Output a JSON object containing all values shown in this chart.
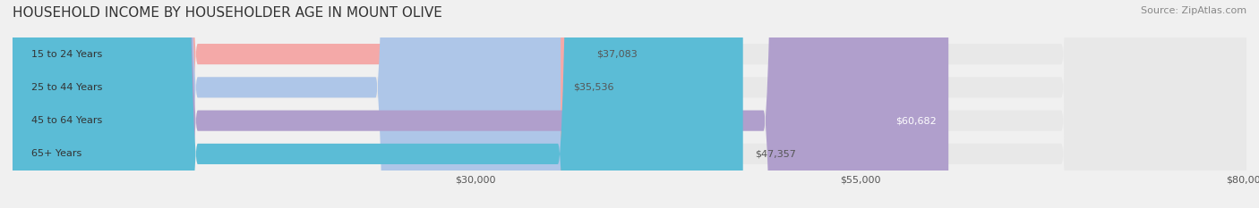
{
  "title": "HOUSEHOLD INCOME BY HOUSEHOLDER AGE IN MOUNT OLIVE",
  "source": "Source: ZipAtlas.com",
  "categories": [
    "15 to 24 Years",
    "25 to 44 Years",
    "45 to 64 Years",
    "65+ Years"
  ],
  "values": [
    37083,
    35536,
    60682,
    47357
  ],
  "bar_colors": [
    "#f4a9a8",
    "#aec6e8",
    "#b09fcc",
    "#5bbcd6"
  ],
  "label_colors": [
    "#c0504d",
    "#4472c4",
    "#7b6da0",
    "#2a9db5"
  ],
  "value_labels": [
    "$37,083",
    "$35,536",
    "$60,682",
    "$47,357"
  ],
  "value_label_colors": [
    "#555555",
    "#555555",
    "#ffffff",
    "#555555"
  ],
  "xmin": 0,
  "xmax": 80000,
  "xticks": [
    30000,
    55000,
    80000
  ],
  "xtick_labels": [
    "$30,000",
    "$55,000",
    "$80,000"
  ],
  "background_color": "#f0f0f0",
  "bar_bg_color": "#e8e8e8",
  "title_fontsize": 11,
  "source_fontsize": 8,
  "label_fontsize": 8,
  "value_fontsize": 8,
  "bar_height": 0.62
}
